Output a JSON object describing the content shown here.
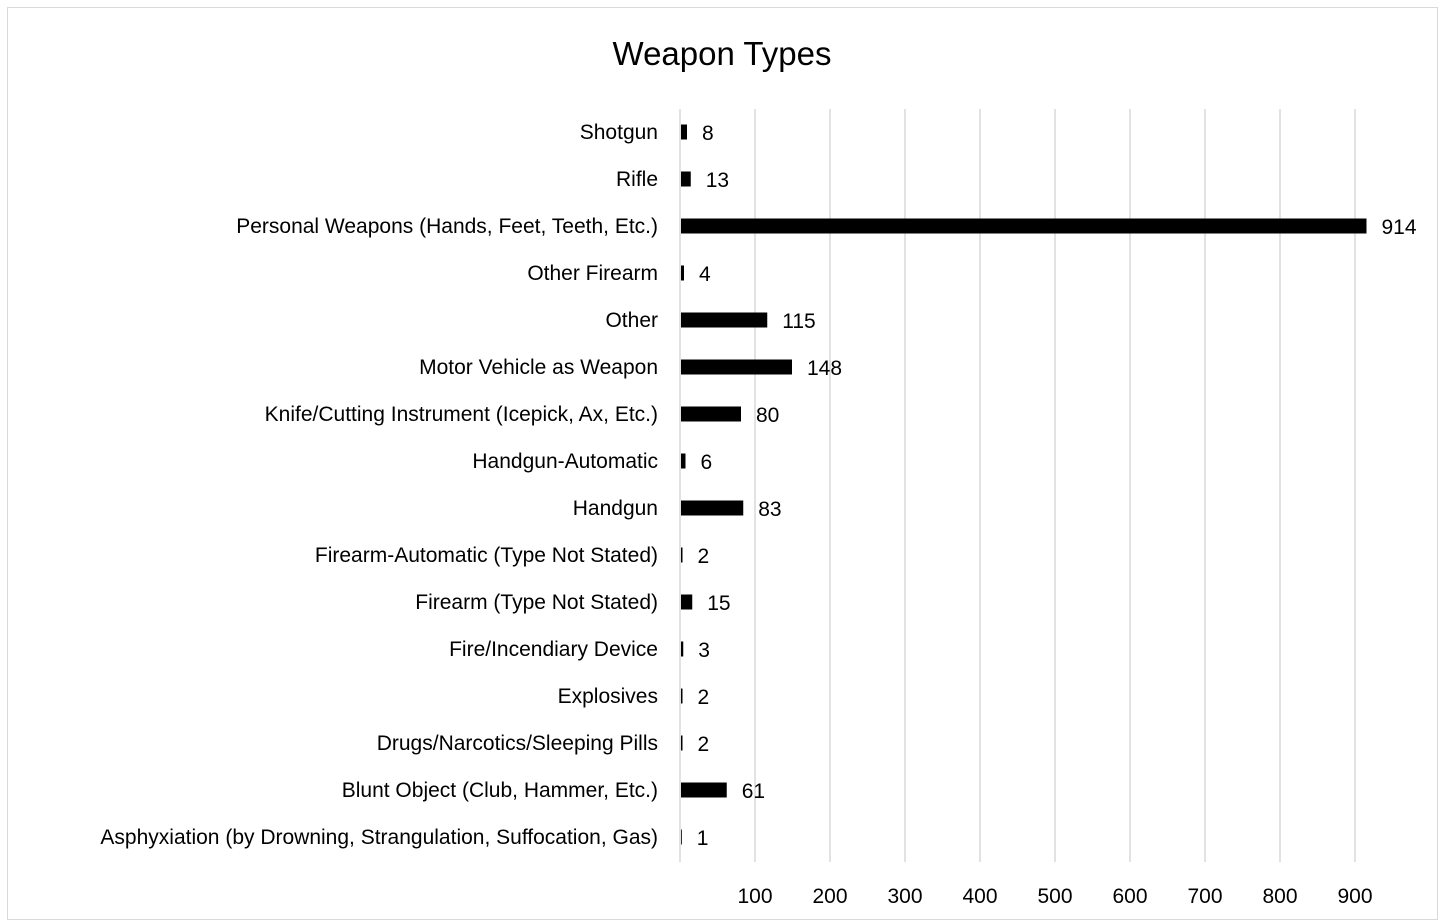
{
  "chart_data": {
    "type": "bar",
    "orientation": "horizontal",
    "title": "Weapon Types",
    "xlabel": "",
    "ylabel": "",
    "categories": [
      "Shotgun",
      "Rifle",
      "Personal Weapons (Hands, Feet, Teeth, Etc.)",
      "Other Firearm",
      "Other",
      "Motor Vehicle as Weapon",
      "Knife/Cutting Instrument (Icepick, Ax, Etc.)",
      "Handgun-Automatic",
      "Handgun",
      "Firearm-Automatic (Type Not Stated)",
      "Firearm (Type Not Stated)",
      "Fire/Incendiary Device",
      "Explosives",
      "Drugs/Narcotics/Sleeping Pills",
      "Blunt Object (Club, Hammer, Etc.)",
      "Asphyxiation (by Drowning, Strangulation, Suffocation, Gas)"
    ],
    "values": [
      8,
      13,
      914,
      4,
      115,
      148,
      80,
      6,
      83,
      2,
      15,
      3,
      2,
      2,
      61,
      1
    ],
    "xlim": [
      0,
      1000
    ],
    "ticks": [
      100,
      200,
      300,
      400,
      500,
      600,
      700,
      800,
      900
    ],
    "tick_labels": [
      "100",
      "200",
      "300",
      "400",
      "500",
      "600",
      "700",
      "800",
      "900"
    ],
    "grid": true,
    "legend": "none",
    "bar_color": "#000000",
    "grid_color": "#d9d9d9"
  }
}
